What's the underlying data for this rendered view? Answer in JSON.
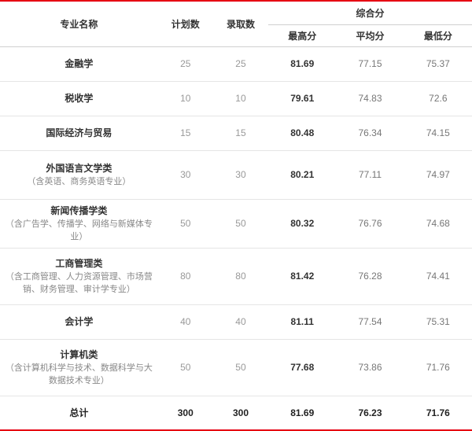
{
  "table": {
    "header": {
      "name": "专业名称",
      "plan": "计划数",
      "accepted": "录取数",
      "composite": "综合分",
      "max": "最高分",
      "avg": "平均分",
      "min": "最低分"
    },
    "rows": [
      {
        "main": "金融学",
        "sub": "",
        "plan": "25",
        "accepted": "25",
        "max": "81.69",
        "avg": "77.15",
        "min": "75.37",
        "h": ""
      },
      {
        "main": "税收学",
        "sub": "",
        "plan": "10",
        "accepted": "10",
        "max": "79.61",
        "avg": "74.83",
        "min": "72.6",
        "h": ""
      },
      {
        "main": "国际经济与贸易",
        "sub": "",
        "plan": "15",
        "accepted": "15",
        "max": "80.48",
        "avg": "76.34",
        "min": "74.15",
        "h": ""
      },
      {
        "main": "外国语言文学类",
        "sub": "（含英语、商务英语专业）",
        "plan": "30",
        "accepted": "30",
        "max": "80.21",
        "avg": "77.11",
        "min": "74.97",
        "h": "tall"
      },
      {
        "main": "新闻传播学类",
        "sub": "（含广告学、传播学、网络与新媒体专业）",
        "plan": "50",
        "accepted": "50",
        "max": "80.32",
        "avg": "76.76",
        "min": "74.68",
        "h": "tall"
      },
      {
        "main": "工商管理类",
        "sub": "（含工商管理、人力资源管理、市场营销、财务管理、审计学专业）",
        "plan": "80",
        "accepted": "80",
        "max": "81.42",
        "avg": "76.28",
        "min": "74.41",
        "h": "taller"
      },
      {
        "main": "会计学",
        "sub": "",
        "plan": "40",
        "accepted": "40",
        "max": "81.11",
        "avg": "77.54",
        "min": "75.31",
        "h": ""
      },
      {
        "main": "计算机类",
        "sub": "（含计算机科学与技术、数据科学与大数据技术专业）",
        "plan": "50",
        "accepted": "50",
        "max": "77.68",
        "avg": "73.86",
        "min": "71.76",
        "h": "taller"
      }
    ],
    "total": {
      "label": "总计",
      "plan": "300",
      "accepted": "300",
      "max": "81.69",
      "avg": "76.23",
      "min": "71.76"
    },
    "colors": {
      "accent": "#e60012",
      "border": "#e5e5e5",
      "text_main": "#333333",
      "text_sub": "#888888",
      "text_light": "#999999"
    }
  }
}
